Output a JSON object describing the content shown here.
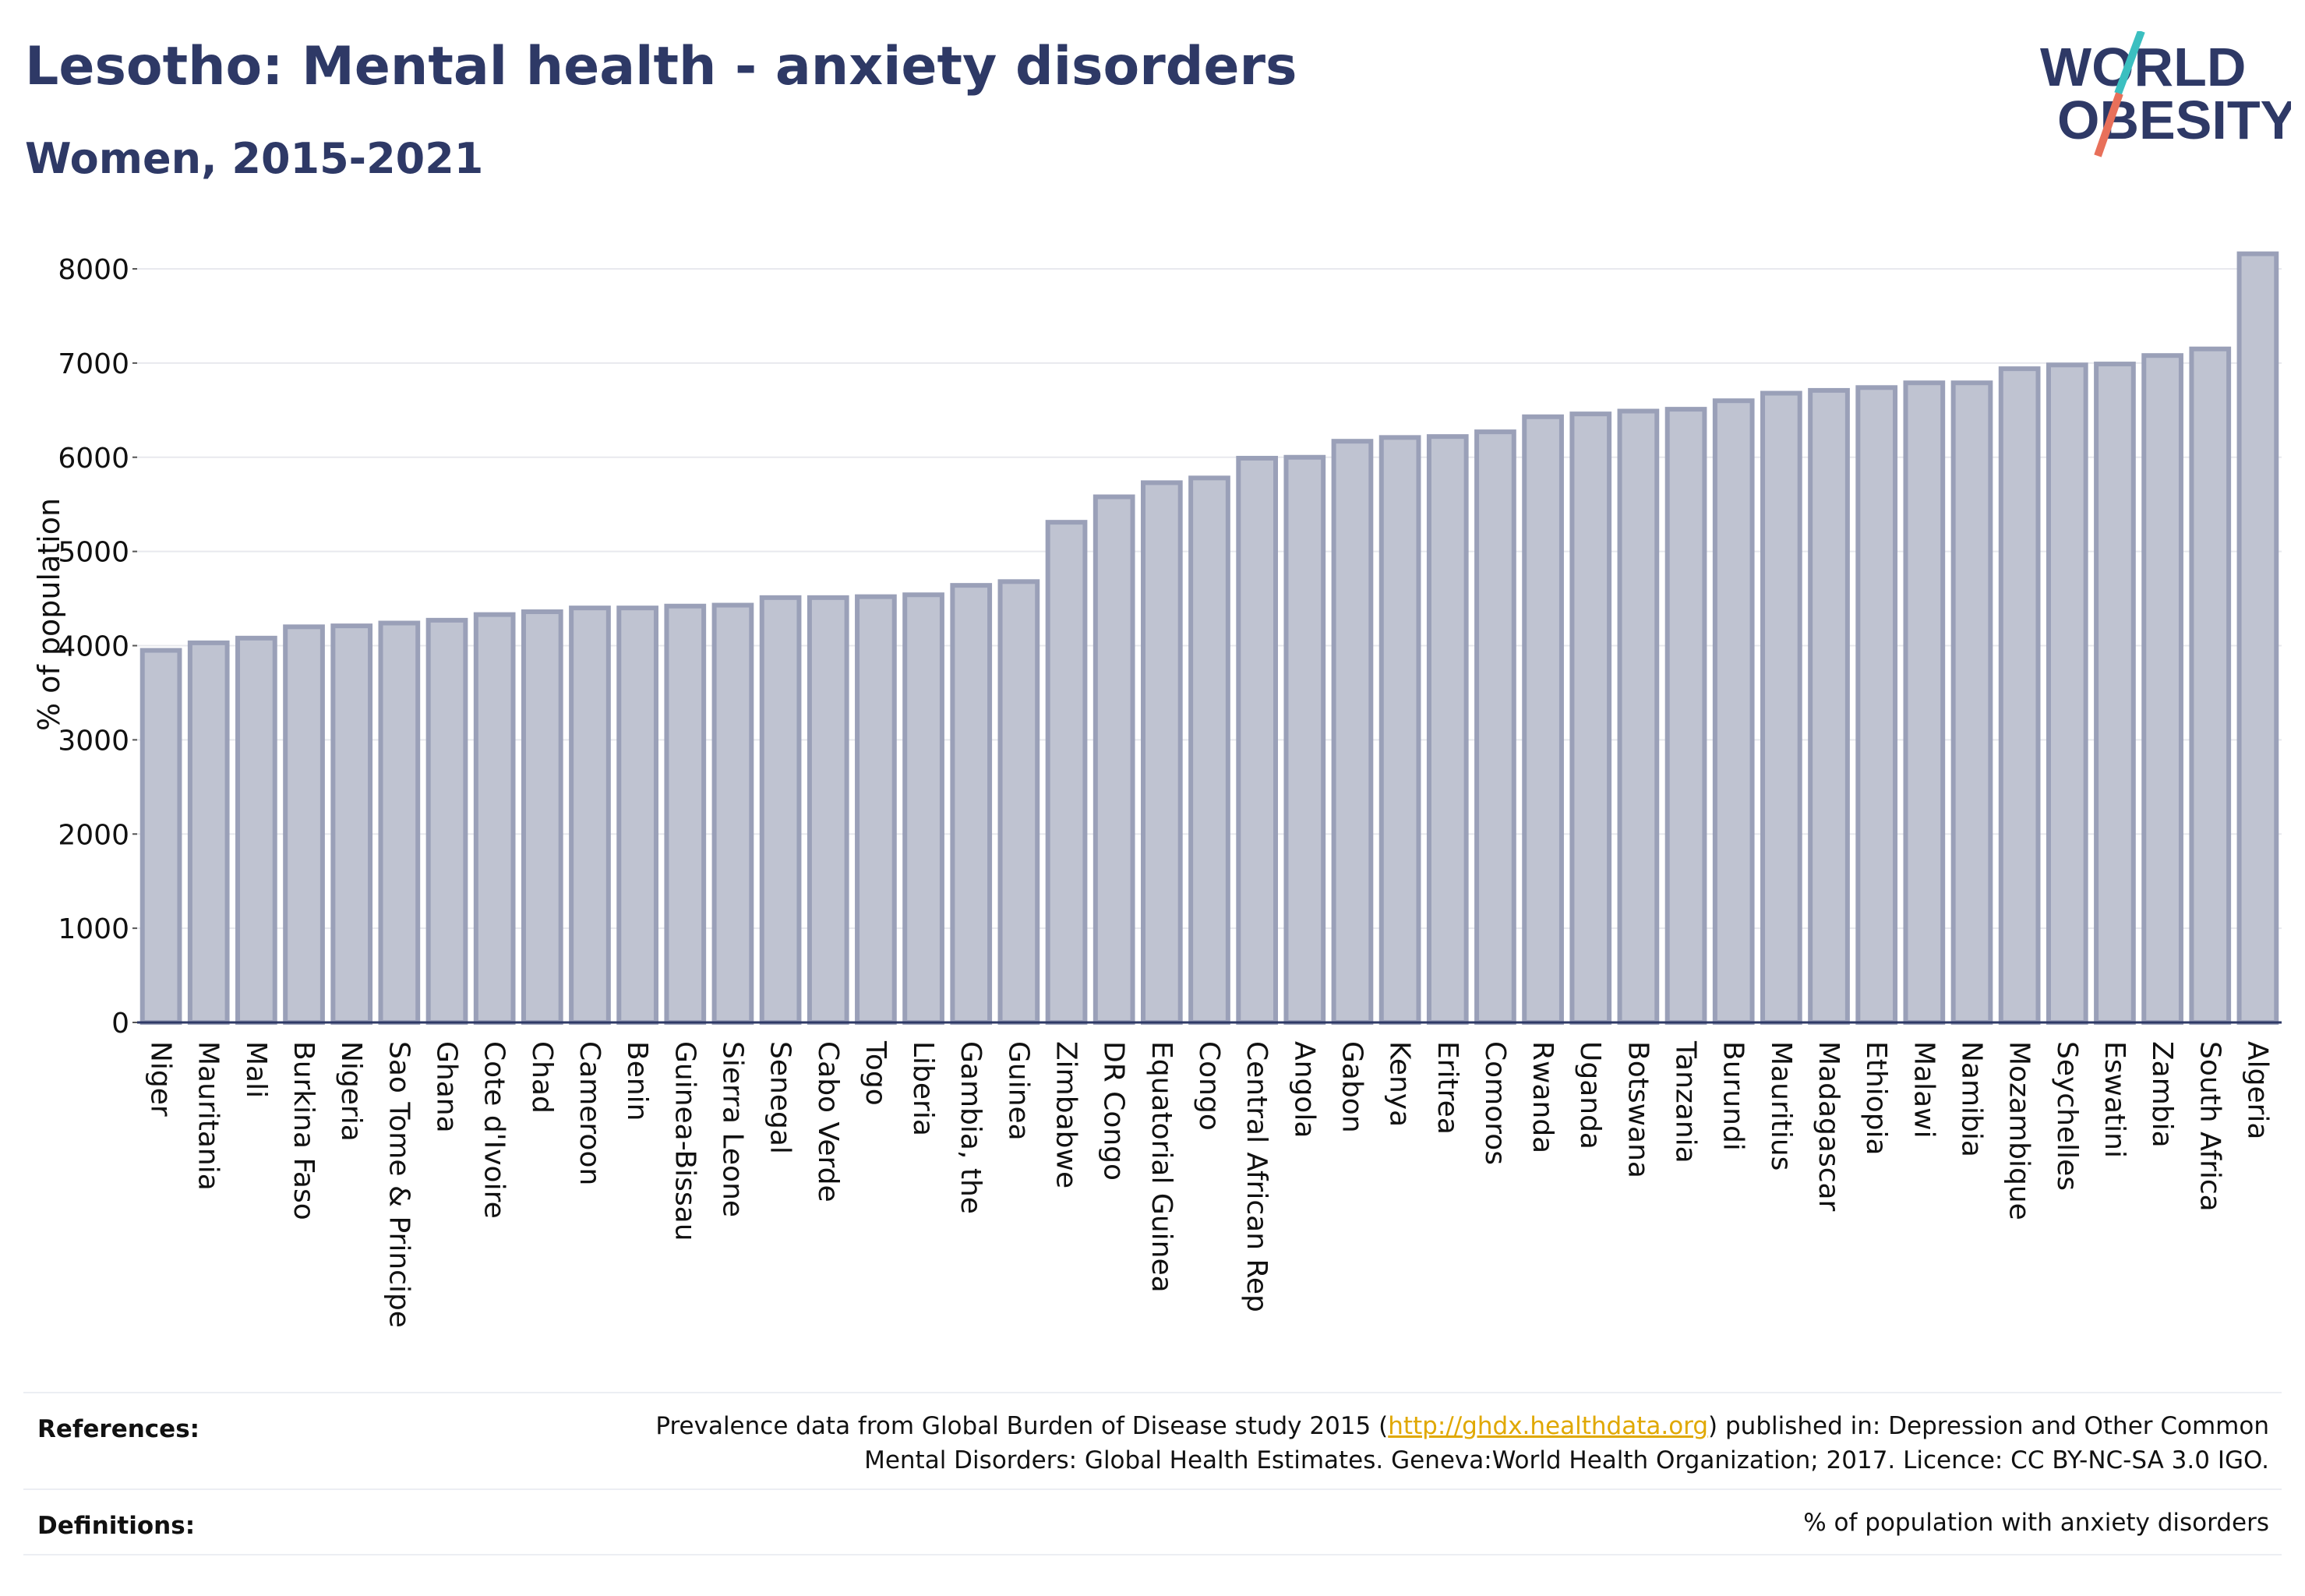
{
  "header": {
    "title": "Lesotho: Mental health - anxiety disorders",
    "subtitle": "Women, 2015-2021"
  },
  "logo": {
    "line1": "WORLD",
    "line2": "OBESITY"
  },
  "chart_data": {
    "type": "bar",
    "ylabel": "% of population",
    "ylim": [
      0,
      8500
    ],
    "yticks": [
      0,
      1000,
      2000,
      3000,
      4000,
      5000,
      6000,
      7000,
      8000
    ],
    "grid": true,
    "bar_color": "#bfc3d1",
    "bar_edge_color": "#9aa0b8",
    "categories": [
      "Niger",
      "Mauritania",
      "Mali",
      "Burkina Faso",
      "Nigeria",
      "Sao Tome & Principe",
      "Ghana",
      "Cote d'Ivoire",
      "Chad",
      "Cameroon",
      "Benin",
      "Guinea-Bissau",
      "Sierra Leone",
      "Senegal",
      "Cabo Verde",
      "Togo",
      "Liberia",
      "Gambia, the",
      "Guinea",
      "Zimbabwe",
      "DR Congo",
      "Equatorial Guinea",
      "Congo",
      "Central African Rep",
      "Angola",
      "Gabon",
      "Kenya",
      "Eritrea",
      "Comoros",
      "Rwanda",
      "Uganda",
      "Botswana",
      "Tanzania",
      "Burundi",
      "Mauritius",
      "Madagascar",
      "Ethiopia",
      "Malawi",
      "Namibia",
      "Mozambique",
      "Seychelles",
      "Eswatini",
      "Zambia",
      "South Africa",
      "Algeria"
    ],
    "values": [
      3950,
      4030,
      4080,
      4200,
      4210,
      4240,
      4270,
      4330,
      4360,
      4400,
      4400,
      4420,
      4430,
      4510,
      4510,
      4520,
      4540,
      4640,
      4680,
      5310,
      5580,
      5730,
      5780,
      5990,
      6000,
      6170,
      6210,
      6220,
      6270,
      6430,
      6460,
      6490,
      6510,
      6600,
      6680,
      6710,
      6740,
      6790,
      6790,
      6940,
      6980,
      6990,
      7080,
      7150,
      8160
    ]
  },
  "references": {
    "label": "References:",
    "text_before_link": "Prevalence data from Global Burden of Disease study 2015 (",
    "link": "http://ghdx.healthdata.org",
    "text_after_link": ") published in: Depression and Other Common",
    "line2": "Mental Disorders: Global Health Estimates. Geneva:World Health Organization; 2017. Licence: CC BY-NC-SA 3.0 IGO."
  },
  "definitions": {
    "label": "Definitions:",
    "text": "% of population with anxiety disorders"
  },
  "colors": {
    "title": "#2e3966",
    "logo_slash_top": "#3bbfc0",
    "logo_slash_bottom": "#e8705a",
    "link": "#e0a800"
  }
}
